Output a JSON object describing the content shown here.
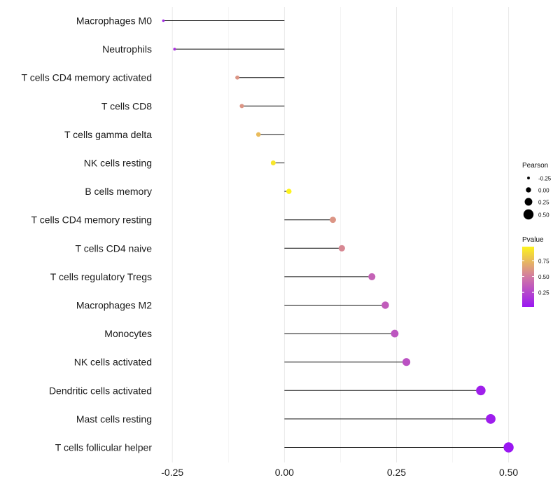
{
  "chart_data": {
    "type": "lollipop",
    "title": "",
    "xlabel": "",
    "ylabel": "",
    "xlim": [
      -0.28,
      0.51
    ],
    "x_ticks": [
      -0.25,
      0.0,
      0.25,
      0.5
    ],
    "x_tick_labels": [
      "-0.25",
      "0.00",
      "0.25",
      "0.50"
    ],
    "grid": true,
    "categories": [
      "Macrophages M0",
      "Neutrophils",
      "T cells CD4 memory activated",
      "T cells CD8",
      "T cells gamma delta",
      "NK cells resting",
      "B cells memory",
      "T cells CD4 memory resting",
      "T cells CD4 naive",
      "T cells regulatory  Tregs ",
      "Macrophages M2",
      "Monocytes",
      "NK cells activated",
      "Dendritic cells activated",
      "Mast cells resting",
      "T cells follicular helper"
    ],
    "pearson": [
      -0.27,
      -0.245,
      -0.105,
      -0.095,
      -0.058,
      -0.025,
      0.01,
      0.108,
      0.128,
      0.195,
      0.225,
      0.246,
      0.272,
      0.438,
      0.46,
      0.5
    ],
    "pvalue": [
      0.1,
      0.15,
      0.6,
      0.6,
      0.75,
      0.92,
      0.97,
      0.6,
      0.55,
      0.38,
      0.35,
      0.32,
      0.3,
      0.06,
      0.05,
      0.02
    ],
    "legend": {
      "size": {
        "title": "Pearson",
        "values": [
          -0.25,
          0.0,
          0.25,
          0.5
        ],
        "labels": [
          "-0.25",
          "0.00",
          "0.25",
          "0.50"
        ]
      },
      "color": {
        "title": "Pvalue",
        "range": [
          0.02,
          0.97
        ],
        "ticks": [
          0.75,
          0.5,
          0.25
        ],
        "tick_labels": [
          "0.75",
          "0.50",
          "0.25"
        ],
        "low_color": "#9a17f2",
        "mid_color": "#d27aa3",
        "high_color": "#fdf31d"
      },
      "placement": "right"
    }
  }
}
